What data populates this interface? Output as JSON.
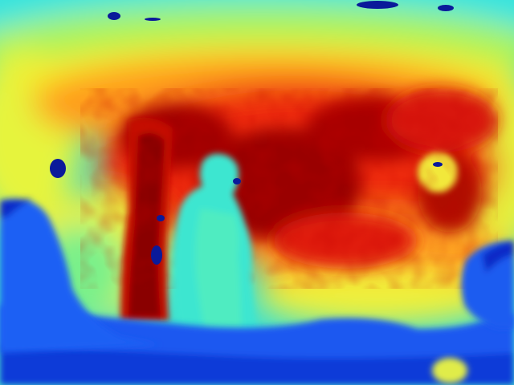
{
  "image": {
    "kind": "depth-map",
    "colormap": "jet",
    "colors": {
      "near_deep_blue": "#0a2cc8",
      "near_blue": "#1450ee",
      "mid_cyan": "#38e4d6",
      "mid_green": "#8ef07a",
      "yellow": "#f4f038",
      "orange": "#ff9a1a",
      "red": "#ee1f0c",
      "far_dark_red": "#8e0000"
    }
  }
}
